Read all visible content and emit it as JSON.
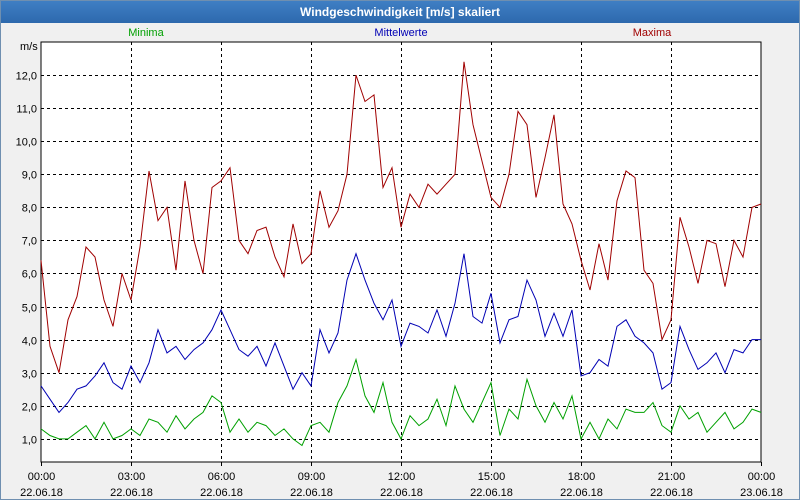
{
  "window": {
    "title": "Windgeschwindigkeit [m/s] skaliert"
  },
  "colors": {
    "min": "#00a000",
    "mean": "#0000b4",
    "max": "#a00000",
    "grid": "#000000",
    "plot_bg": "#ffffff"
  },
  "chart_data": {
    "type": "line",
    "title": "Windgeschwindigkeit [m/s] skaliert",
    "ylabel": "m/s",
    "ylim": [
      0.3,
      13.0
    ],
    "xlim": [
      0,
      24
    ],
    "yticks": [
      1.0,
      2.0,
      3.0,
      4.0,
      5.0,
      6.0,
      7.0,
      8.0,
      9.0,
      10.0,
      11.0,
      12.0
    ],
    "ytick_labels": [
      "1,0",
      "2,0",
      "3,0",
      "4,0",
      "5,0",
      "6,0",
      "7,0",
      "8,0",
      "9,0",
      "10,0",
      "11,0",
      "12,0"
    ],
    "xticks": [
      0,
      3,
      6,
      9,
      12,
      15,
      18,
      21,
      24
    ],
    "xtick_time_labels": [
      "00:00",
      "03:00",
      "06:00",
      "09:00",
      "12:00",
      "15:00",
      "18:00",
      "21:00",
      "00:00"
    ],
    "xtick_date_labels": [
      "22.06.18",
      "22.06.18",
      "22.06.18",
      "22.06.18",
      "22.06.18",
      "22.06.18",
      "22.06.18",
      "22.06.18",
      "23.06.18"
    ],
    "grid": true,
    "series": [
      {
        "name": "Minima",
        "color": "#00a000",
        "x": [
          0,
          0.3,
          0.6,
          0.9,
          1.2,
          1.5,
          1.8,
          2.1,
          2.4,
          2.7,
          3.0,
          3.3,
          3.6,
          3.9,
          4.2,
          4.5,
          4.8,
          5.1,
          5.4,
          5.7,
          6.0,
          6.3,
          6.6,
          6.9,
          7.2,
          7.5,
          7.8,
          8.1,
          8.4,
          8.7,
          9.0,
          9.3,
          9.6,
          9.9,
          10.2,
          10.5,
          10.8,
          11.1,
          11.4,
          11.7,
          12.0,
          12.3,
          12.6,
          12.9,
          13.2,
          13.5,
          13.8,
          14.1,
          14.4,
          14.7,
          15.0,
          15.3,
          15.6,
          15.9,
          16.2,
          16.5,
          16.8,
          17.1,
          17.4,
          17.7,
          18.0,
          18.3,
          18.6,
          18.9,
          19.2,
          19.5,
          19.8,
          20.1,
          20.4,
          20.7,
          21.0,
          21.3,
          21.6,
          21.9,
          22.2,
          22.5,
          22.8,
          23.1,
          23.4,
          23.7,
          24.0
        ],
        "values": [
          1.3,
          1.1,
          1.0,
          1.0,
          1.2,
          1.4,
          1.0,
          1.5,
          1.0,
          1.1,
          1.3,
          1.1,
          1.6,
          1.5,
          1.2,
          1.7,
          1.3,
          1.6,
          1.8,
          2.3,
          2.1,
          1.2,
          1.6,
          1.2,
          1.5,
          1.4,
          1.1,
          1.3,
          1.0,
          0.8,
          1.4,
          1.5,
          1.2,
          2.1,
          2.6,
          3.4,
          2.3,
          1.8,
          2.7,
          1.5,
          1.0,
          1.7,
          1.4,
          1.6,
          2.2,
          1.4,
          2.6,
          1.9,
          1.5,
          2.1,
          2.7,
          1.1,
          1.9,
          1.6,
          2.8,
          2.0,
          1.5,
          2.1,
          1.6,
          2.3,
          1.0,
          1.5,
          1.0,
          1.6,
          1.3,
          1.9,
          1.8,
          1.8,
          2.1,
          1.4,
          1.2,
          2.0,
          1.6,
          1.8,
          1.2,
          1.5,
          1.8,
          1.3,
          1.5,
          1.9,
          1.8
        ]
      },
      {
        "name": "Mittelwerte",
        "color": "#0000b4",
        "x": [
          0,
          0.3,
          0.6,
          0.9,
          1.2,
          1.5,
          1.8,
          2.1,
          2.4,
          2.7,
          3.0,
          3.3,
          3.6,
          3.9,
          4.2,
          4.5,
          4.8,
          5.1,
          5.4,
          5.7,
          6.0,
          6.3,
          6.6,
          6.9,
          7.2,
          7.5,
          7.8,
          8.1,
          8.4,
          8.7,
          9.0,
          9.3,
          9.6,
          9.9,
          10.2,
          10.5,
          10.8,
          11.1,
          11.4,
          11.7,
          12.0,
          12.3,
          12.6,
          12.9,
          13.2,
          13.5,
          13.8,
          14.1,
          14.4,
          14.7,
          15.0,
          15.3,
          15.6,
          15.9,
          16.2,
          16.5,
          16.8,
          17.1,
          17.4,
          17.7,
          18.0,
          18.3,
          18.6,
          18.9,
          19.2,
          19.5,
          19.8,
          20.1,
          20.4,
          20.7,
          21.0,
          21.3,
          21.6,
          21.9,
          22.2,
          22.5,
          22.8,
          23.1,
          23.4,
          23.7,
          24.0
        ],
        "values": [
          2.6,
          2.2,
          1.8,
          2.1,
          2.5,
          2.6,
          2.9,
          3.3,
          2.7,
          2.5,
          3.2,
          2.7,
          3.3,
          4.3,
          3.6,
          3.8,
          3.4,
          3.7,
          3.9,
          4.3,
          4.9,
          4.3,
          3.7,
          3.5,
          3.8,
          3.2,
          3.9,
          3.2,
          2.5,
          3.0,
          2.6,
          4.3,
          3.6,
          4.2,
          5.8,
          6.6,
          5.8,
          5.1,
          4.6,
          5.2,
          3.8,
          4.5,
          4.4,
          4.2,
          4.9,
          4.1,
          5.1,
          6.6,
          4.7,
          4.5,
          5.4,
          3.9,
          4.6,
          4.7,
          5.8,
          5.2,
          4.1,
          4.8,
          4.1,
          4.9,
          2.9,
          3.0,
          3.4,
          3.2,
          4.4,
          4.6,
          4.1,
          3.9,
          3.6,
          2.5,
          2.7,
          4.4,
          3.7,
          3.1,
          3.3,
          3.6,
          3.0,
          3.7,
          3.6,
          4.0,
          4.0
        ]
      },
      {
        "name": "Maxima",
        "color": "#a00000",
        "x": [
          0,
          0.3,
          0.6,
          0.9,
          1.2,
          1.5,
          1.8,
          2.1,
          2.4,
          2.7,
          3.0,
          3.3,
          3.6,
          3.9,
          4.2,
          4.5,
          4.8,
          5.1,
          5.4,
          5.7,
          6.0,
          6.3,
          6.6,
          6.9,
          7.2,
          7.5,
          7.8,
          8.1,
          8.4,
          8.7,
          9.0,
          9.3,
          9.6,
          9.9,
          10.2,
          10.5,
          10.8,
          11.1,
          11.4,
          11.7,
          12.0,
          12.3,
          12.6,
          12.9,
          13.2,
          13.5,
          13.8,
          14.1,
          14.4,
          14.7,
          15.0,
          15.3,
          15.6,
          15.9,
          16.2,
          16.5,
          16.8,
          17.1,
          17.4,
          17.7,
          18.0,
          18.3,
          18.6,
          18.9,
          19.2,
          19.5,
          19.8,
          20.1,
          20.4,
          20.7,
          21.0,
          21.3,
          21.6,
          21.9,
          22.2,
          22.5,
          22.8,
          23.1,
          23.4,
          23.7,
          24.0
        ],
        "values": [
          6.4,
          3.8,
          3.0,
          4.6,
          5.3,
          6.8,
          6.5,
          5.2,
          4.4,
          6.0,
          5.2,
          6.8,
          9.1,
          7.6,
          8.0,
          6.1,
          8.8,
          7.0,
          6.0,
          8.6,
          8.8,
          9.2,
          7.0,
          6.6,
          7.3,
          7.4,
          6.5,
          5.9,
          7.5,
          6.3,
          6.6,
          8.5,
          7.4,
          7.9,
          9.0,
          12.0,
          11.2,
          11.4,
          8.6,
          9.2,
          7.4,
          8.4,
          8.0,
          8.7,
          8.4,
          8.7,
          9.0,
          12.4,
          10.5,
          9.4,
          8.3,
          8.0,
          9.0,
          10.9,
          10.5,
          8.3,
          9.5,
          10.8,
          8.1,
          7.5,
          6.4,
          5.5,
          6.9,
          5.8,
          8.2,
          9.1,
          8.9,
          6.1,
          5.7,
          4.0,
          4.6,
          7.7,
          6.8,
          5.7,
          7.0,
          6.9,
          5.6,
          7.0,
          6.5,
          8.0,
          8.1
        ]
      }
    ]
  }
}
